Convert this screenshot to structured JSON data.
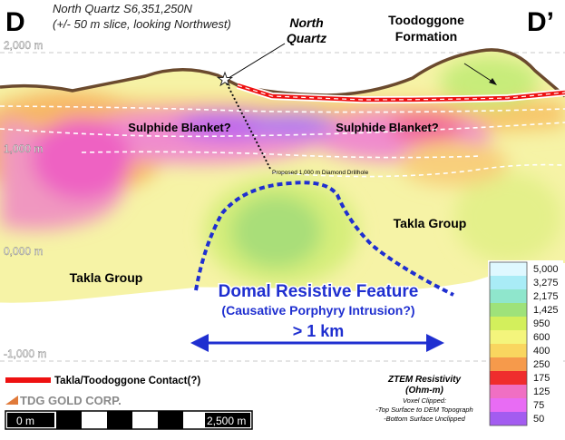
{
  "section": {
    "left_letter": "D",
    "right_letter": "D’",
    "title_line1": "North Quartz  S6,351,250N",
    "title_line2": "(+/- 50 m slice, looking Northwest)"
  },
  "elevation_labels": [
    "2,000 m",
    "1,000 m",
    "0,000 m",
    "-1,000 m"
  ],
  "annotations": {
    "north_quartz_line1": "North",
    "north_quartz_line2": "Quartz",
    "toodoggone_line1": "Toodoggone",
    "toodoggone_line2": "Formation",
    "sulphide_left": "Sulphide Blanket?",
    "sulphide_right": "Sulphide Blanket?",
    "drillhole": "Proposed 1,000 m Diamond Drillhole",
    "takla_right": "Takla Group",
    "takla_left": "Takla Group",
    "domal_line1": "Domal Resistive Feature",
    "domal_line2": "(Causative Porphyry Intrusion?)",
    "width_label": "> 1 km"
  },
  "contact_legend": {
    "label": "Takla/Toodoggone Contact(?)",
    "color": "#ee1111"
  },
  "company": {
    "name": "TDG GOLD CORP."
  },
  "scale_bar": {
    "start": "0 m",
    "end": "2,500 m"
  },
  "resistivity_legend": {
    "title_line1": "ZTEM Resistivity",
    "title_line2": "(Ohm-m)",
    "note_line1": "Voxel Clipped:",
    "note_line2": "-Top Surface to DEM Topograph",
    "note_line3": "-Bottom Surface Unclipped",
    "values": [
      "5,000",
      "3,275",
      "2,175",
      "1,425",
      "950",
      "600",
      "400",
      "250",
      "175",
      "125",
      "75",
      "50"
    ],
    "colors": [
      "#dff8ff",
      "#a9ecf6",
      "#8fe6cc",
      "#9ee27a",
      "#d3ef5c",
      "#f4f57c",
      "#f9d65f",
      "#f69a4b",
      "#ef2d2d",
      "#f06fc3",
      "#e86cf4",
      "#a35cf0"
    ]
  },
  "colors": {
    "section_fill": "#f6f3a6",
    "topography": "#6b4a2e",
    "accent_blue": "#1f2fd0",
    "dashed_white": "#ffffff"
  }
}
